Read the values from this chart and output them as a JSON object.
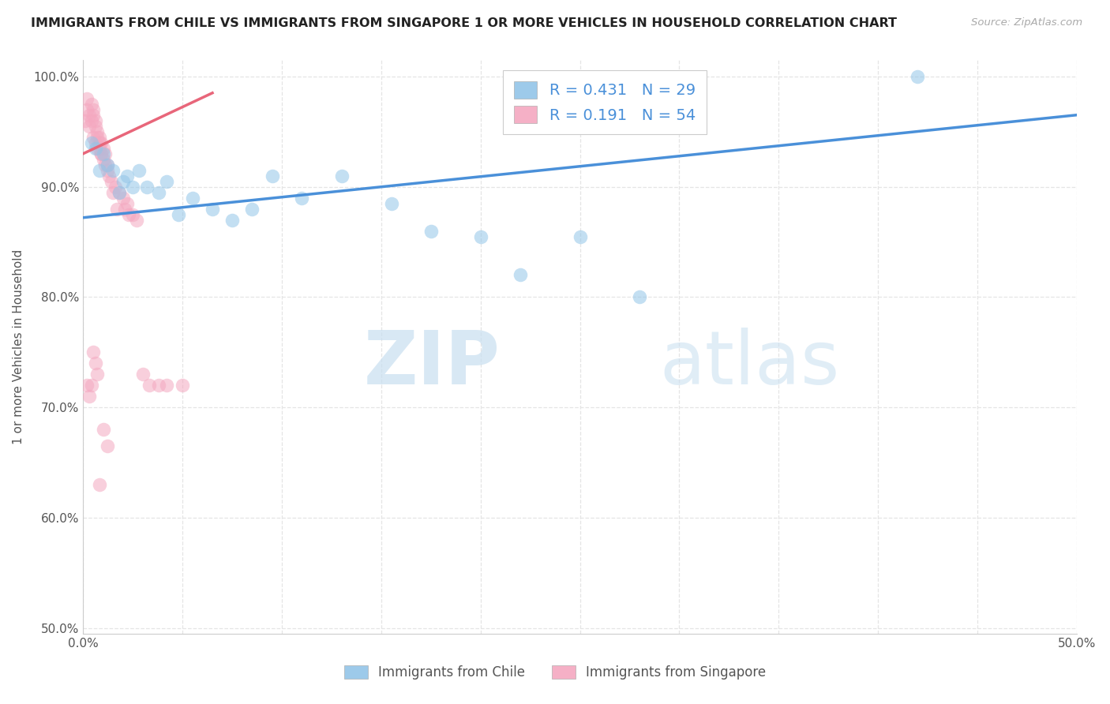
{
  "title": "IMMIGRANTS FROM CHILE VS IMMIGRANTS FROM SINGAPORE 1 OR MORE VEHICLES IN HOUSEHOLD CORRELATION CHART",
  "source": "Source: ZipAtlas.com",
  "ylabel": "1 or more Vehicles in Household",
  "xlim": [
    0.0,
    0.5
  ],
  "ylim": [
    0.495,
    1.015
  ],
  "xticks": [
    0.0,
    0.05,
    0.1,
    0.15,
    0.2,
    0.25,
    0.3,
    0.35,
    0.4,
    0.45,
    0.5
  ],
  "yticks": [
    0.5,
    0.6,
    0.7,
    0.8,
    0.9,
    1.0
  ],
  "xtick_labels": [
    "0.0%",
    "",
    "",
    "",
    "",
    "",
    "",
    "",
    "",
    "",
    "50.0%"
  ],
  "ytick_labels": [
    "50.0%",
    "60.0%",
    "70.0%",
    "80.0%",
    "90.0%",
    "100.0%"
  ],
  "legend_R_chile": "0.431",
  "legend_N_chile": "29",
  "legend_R_singapore": "0.191",
  "legend_N_singapore": "54",
  "chile_color": "#92c5e8",
  "singapore_color": "#f4a8c0",
  "chile_line_color": "#4a90d9",
  "singapore_line_color": "#e8667a",
  "chile_scatter_x": [
    0.004,
    0.006,
    0.008,
    0.01,
    0.012,
    0.015,
    0.018,
    0.02,
    0.022,
    0.025,
    0.028,
    0.032,
    0.038,
    0.042,
    0.048,
    0.055,
    0.065,
    0.075,
    0.085,
    0.095,
    0.11,
    0.13,
    0.155,
    0.175,
    0.2,
    0.22,
    0.25,
    0.28,
    0.42
  ],
  "chile_scatter_y": [
    0.94,
    0.935,
    0.915,
    0.93,
    0.92,
    0.915,
    0.895,
    0.905,
    0.91,
    0.9,
    0.915,
    0.9,
    0.895,
    0.905,
    0.875,
    0.89,
    0.88,
    0.87,
    0.88,
    0.91,
    0.89,
    0.91,
    0.885,
    0.86,
    0.855,
    0.82,
    0.855,
    0.8,
    1.0
  ],
  "singapore_scatter_x": [
    0.001,
    0.002,
    0.002,
    0.003,
    0.003,
    0.004,
    0.004,
    0.005,
    0.005,
    0.005,
    0.006,
    0.006,
    0.006,
    0.007,
    0.007,
    0.007,
    0.008,
    0.008,
    0.008,
    0.009,
    0.009,
    0.009,
    0.01,
    0.01,
    0.011,
    0.011,
    0.012,
    0.012,
    0.013,
    0.014,
    0.015,
    0.016,
    0.017,
    0.018,
    0.02,
    0.021,
    0.022,
    0.023,
    0.025,
    0.027,
    0.03,
    0.033,
    0.038,
    0.042,
    0.05,
    0.01,
    0.012,
    0.008,
    0.007,
    0.006,
    0.005,
    0.004,
    0.003,
    0.002
  ],
  "singapore_scatter_y": [
    0.96,
    0.97,
    0.98,
    0.965,
    0.955,
    0.975,
    0.96,
    0.97,
    0.965,
    0.945,
    0.94,
    0.955,
    0.96,
    0.945,
    0.935,
    0.95,
    0.94,
    0.945,
    0.935,
    0.93,
    0.94,
    0.93,
    0.925,
    0.935,
    0.92,
    0.93,
    0.915,
    0.92,
    0.91,
    0.905,
    0.895,
    0.9,
    0.88,
    0.895,
    0.89,
    0.88,
    0.885,
    0.875,
    0.875,
    0.87,
    0.73,
    0.72,
    0.72,
    0.72,
    0.72,
    0.68,
    0.665,
    0.63,
    0.73,
    0.74,
    0.75,
    0.72,
    0.71,
    0.72
  ],
  "watermark_zip": "ZIP",
  "watermark_atlas": "atlas",
  "background_color": "#ffffff",
  "grid_color": "#e5e5e5"
}
